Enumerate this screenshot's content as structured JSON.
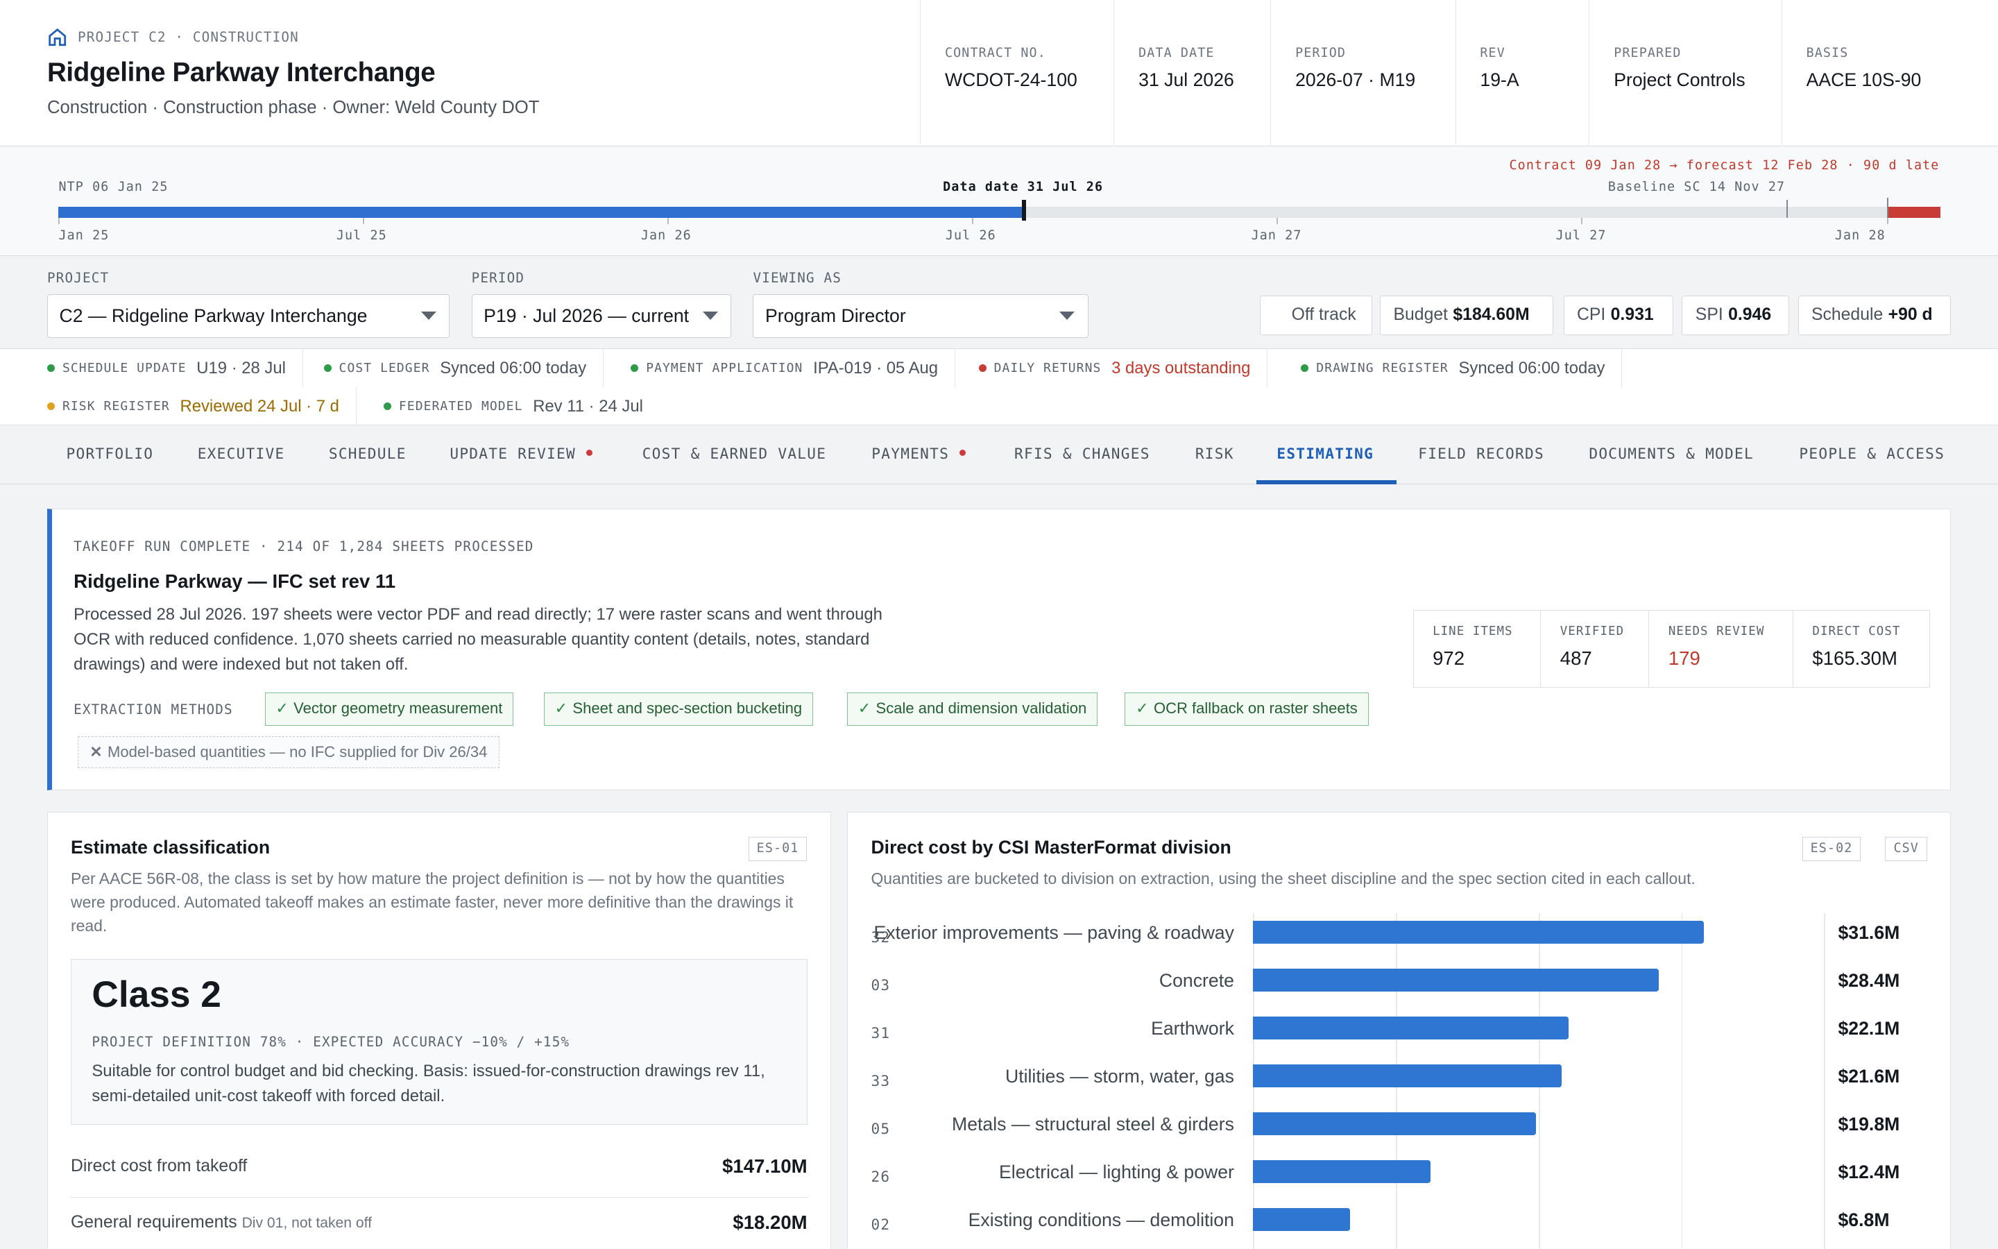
{
  "header": {
    "breadcrumb": "PROJECT C2 · CONSTRUCTION",
    "title": "Ridgeline Parkway Interchange",
    "subtitle": "Construction · Construction phase · Owner: Weld County DOT",
    "meta": [
      {
        "key": "CONTRACT NO.",
        "value": "WCDOT-24-100"
      },
      {
        "key": "DATA DATE",
        "value": "31 Jul 2026"
      },
      {
        "key": "PERIOD",
        "value": "2026-07 · M19"
      },
      {
        "key": "REV",
        "value": "19-A"
      },
      {
        "key": "PREPARED",
        "value": "Project Controls"
      },
      {
        "key": "BASIS",
        "value": "AACE 10S-90"
      }
    ]
  },
  "timeline": {
    "ntp": "NTP 06 Jan 25",
    "data_date": "Data date 31 Jul 26",
    "late": "Contract 09 Jan 28 → forecast 12 Feb 28 · 90 d late",
    "baseline": "Baseline SC 14 Nov 27",
    "progress": 0.486,
    "ticks": [
      "Jan 25",
      "Jul 25",
      "Jan 26",
      "Jul 26",
      "Jan 27",
      "Jul 27",
      "Jan 28"
    ]
  },
  "filters": {
    "project_label": "PROJECT",
    "project_value": "C2 — Ridgeline Parkway Interchange",
    "period_label": "PERIOD",
    "period_value": "P19 · Jul 2026 — current",
    "viewing_label": "VIEWING AS",
    "viewing_value": "Program Director",
    "kpis": {
      "status": "Off track",
      "budget_label": "Budget",
      "budget_value": "$184.60M",
      "cpi_label": "CPI",
      "cpi_value": "0.931",
      "spi_label": "SPI",
      "spi_value": "0.946",
      "schedule_label": "Schedule",
      "schedule_value": "+90 d"
    }
  },
  "status": [
    {
      "key": "SCHEDULE UPDATE",
      "value": "U19 · 28 Jul",
      "color": "#2e9b4a"
    },
    {
      "key": "COST LEDGER",
      "value": "Synced 06:00 today",
      "color": "#2e9b4a"
    },
    {
      "key": "PAYMENT APPLICATION",
      "value": "IPA-019 · 05 Aug",
      "color": "#2e9b4a"
    },
    {
      "key": "DAILY RETURNS",
      "value": "3 days outstanding",
      "color": "#c93b35"
    },
    {
      "key": "DRAWING REGISTER",
      "value": "Synced 06:00 today",
      "color": "#2e9b4a"
    },
    {
      "key": "RISK REGISTER",
      "value": "Reviewed 24 Jul · 7 d",
      "color": "#e0a020"
    },
    {
      "key": "FEDERATED MODEL",
      "value": "Rev 11 · 24 Jul",
      "color": "#2e9b4a"
    }
  ],
  "tabs": [
    "PORTFOLIO",
    "EXECUTIVE",
    "SCHEDULE",
    "UPDATE REVIEW",
    "COST & EARNED VALUE",
    "PAYMENTS",
    "RFIS & CHANGES",
    "RISK",
    "ESTIMATING",
    "FIELD RECORDS",
    "DOCUMENTS & MODEL",
    "PEOPLE & ACCESS"
  ],
  "takeoff": {
    "kicker": "TAKEOFF RUN COMPLETE · 214 OF 1,284 SHEETS PROCESSED",
    "title": "Ridgeline Parkway — IFC set rev 11",
    "body": "Processed 28 Jul 2026. 197 sheets were vector PDF and read directly; 17 were raster scans and went through OCR with reduced confidence. 1,070 sheets carried no measurable quantity content (details, notes, standard drawings) and were indexed but not taken off.",
    "methods_label": "EXTRACTION METHODS",
    "methods": [
      "Vector geometry measurement",
      "Sheet and spec-section bucketing",
      "Scale and dimension validation",
      "OCR fallback on raster sheets"
    ],
    "disabled_method": "Model-based quantities — no IFC supplied for Div 26/34",
    "stats": [
      {
        "key": "LINE ITEMS",
        "value": "972"
      },
      {
        "key": "VERIFIED",
        "value": "487"
      },
      {
        "key": "NEEDS REVIEW",
        "value": "179"
      },
      {
        "key": "DIRECT COST",
        "value": "$165.30M"
      }
    ]
  },
  "classification": {
    "title": "Estimate classification",
    "badge": "ES-01",
    "subtitle": "Per AACE 56R-08, the class is set by how mature the project definition is — not by how the quantities were produced. Automated takeoff makes an estimate faster, never more definitive than the drawings it read.",
    "class_name": "Class 2",
    "class_meta": "PROJECT DEFINITION 78% · EXPECTED ACCURACY −10% / +15%",
    "class_desc": "Suitable for control budget and bid checking. Basis: issued-for-construction drawings rev 11, semi-detailed unit-cost takeoff with forced detail.",
    "rows": [
      {
        "label": "Direct cost from takeoff",
        "note": "",
        "amount": "$147.10M"
      },
      {
        "label": "General requirements",
        "note": "Div 01, not taken off",
        "amount": "$18.20M"
      }
    ]
  },
  "chart_data": {
    "type": "bar",
    "title": "Direct cost by CSI MasterFormat division",
    "subtitle": "Quantities are bucketed to division on extraction, using the sheet discipline and the spec section cited in each callout.",
    "badge": "ES-02",
    "csv_label": "CSV",
    "codes": [
      "32",
      "03",
      "31",
      "33",
      "05",
      "26",
      "02"
    ],
    "categories": [
      "Exterior improvements — paving & roadway",
      "Concrete",
      "Earthwork",
      "Utilities — storm, water, gas",
      "Metals — structural steel & girders",
      "Electrical — lighting & power",
      "Existing conditions — demolition"
    ],
    "values": [
      31.6,
      28.4,
      22.1,
      21.6,
      19.8,
      12.4,
      6.8
    ],
    "labels": [
      "$31.6M",
      "$28.4M",
      "$22.1M",
      "$21.6M",
      "$19.8M",
      "$12.4M",
      "$6.8M"
    ],
    "unit": "$M",
    "xlim": [
      0,
      40
    ],
    "grid": true,
    "bar_color": "#2f76d2"
  }
}
